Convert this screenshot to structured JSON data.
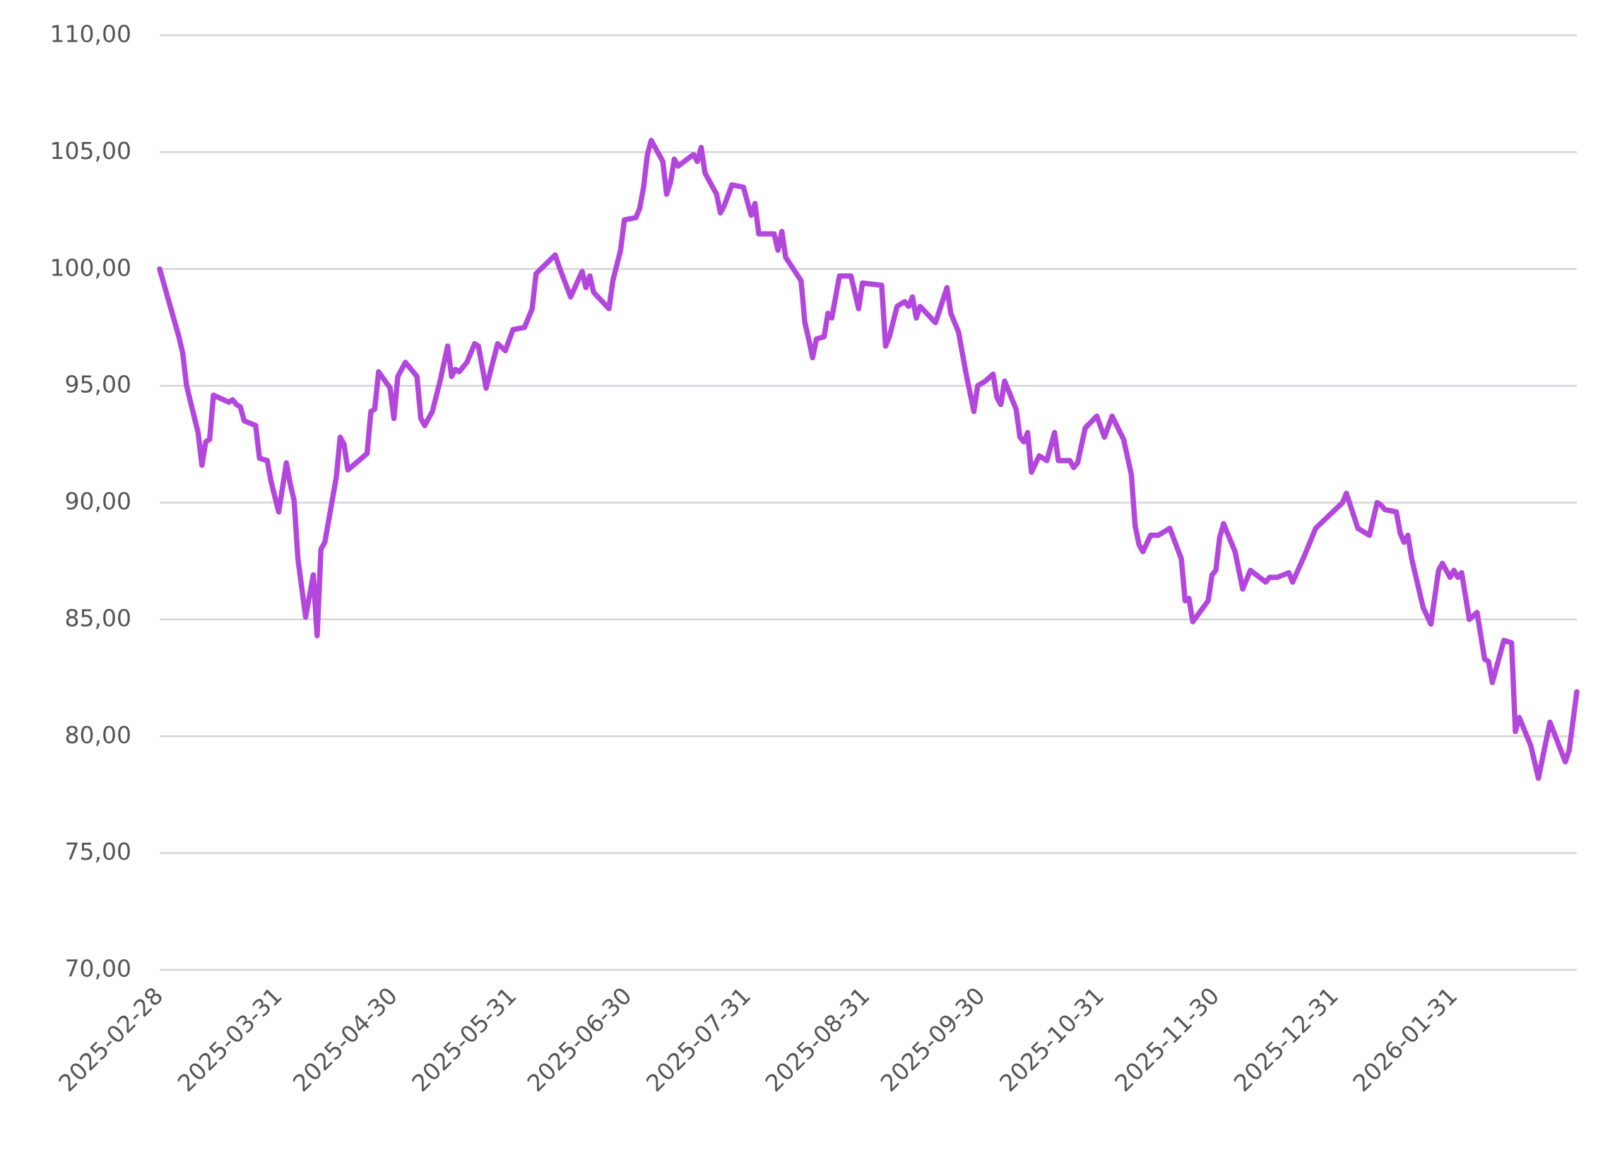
{
  "chart_data": {
    "type": "line",
    "color": "#b347dd",
    "grid": true,
    "x": [
      "2025-02-28",
      "2025-03-05",
      "2025-03-06",
      "2025-03-07",
      "2025-03-10",
      "2025-03-11",
      "2025-03-12",
      "2025-03-13",
      "2025-03-14",
      "2025-03-18",
      "2025-03-19",
      "2025-03-20",
      "2025-03-21",
      "2025-03-22",
      "2025-03-25",
      "2025-03-26",
      "2025-03-28",
      "2025-03-29",
      "2025-03-31",
      "2025-04-02",
      "2025-04-03",
      "2025-04-04",
      "2025-04-05",
      "2025-04-07",
      "2025-04-09",
      "2025-04-10",
      "2025-04-11",
      "2025-04-12",
      "2025-04-15",
      "2025-04-16",
      "2025-04-17",
      "2025-04-18",
      "2025-04-23",
      "2025-04-24",
      "2025-04-25",
      "2025-04-26",
      "2025-04-29",
      "2025-04-30",
      "2025-05-01",
      "2025-05-03",
      "2025-05-06",
      "2025-05-07",
      "2025-05-08",
      "2025-05-10",
      "2025-05-12",
      "2025-05-14",
      "2025-05-15",
      "2025-05-16",
      "2025-05-17",
      "2025-05-19",
      "2025-05-21",
      "2025-05-22",
      "2025-05-24",
      "2025-05-27",
      "2025-05-29",
      "2025-05-31",
      "2025-06-03",
      "2025-06-05",
      "2025-06-06",
      "2025-06-11",
      "2025-06-12",
      "2025-06-15",
      "2025-06-18",
      "2025-06-19",
      "2025-06-20",
      "2025-06-21",
      "2025-06-25",
      "2025-06-26",
      "2025-06-28",
      "2025-06-29",
      "2025-07-02",
      "2025-07-03",
      "2025-07-04",
      "2025-07-05",
      "2025-07-06",
      "2025-07-09",
      "2025-07-10",
      "2025-07-11",
      "2025-07-12",
      "2025-07-13",
      "2025-07-17",
      "2025-07-18",
      "2025-07-19",
      "2025-07-20",
      "2025-07-23",
      "2025-07-24",
      "2025-07-25",
      "2025-07-27",
      "2025-07-30",
      "2025-08-01",
      "2025-08-02",
      "2025-08-03",
      "2025-08-07",
      "2025-08-08",
      "2025-08-09",
      "2025-08-10",
      "2025-08-14",
      "2025-08-15",
      "2025-08-16",
      "2025-08-17",
      "2025-08-18",
      "2025-08-20",
      "2025-08-21",
      "2025-08-22",
      "2025-08-24",
      "2025-08-27",
      "2025-08-29",
      "2025-08-30",
      "2025-09-04",
      "2025-09-05",
      "2025-09-06",
      "2025-09-08",
      "2025-09-10",
      "2025-09-11",
      "2025-09-12",
      "2025-09-13",
      "2025-09-14",
      "2025-09-18",
      "2025-09-19",
      "2025-09-21",
      "2025-09-22",
      "2025-09-24",
      "2025-09-26",
      "2025-09-28",
      "2025-09-29",
      "2025-10-01",
      "2025-10-03",
      "2025-10-04",
      "2025-10-05",
      "2025-10-06",
      "2025-10-09",
      "2025-10-10",
      "2025-10-11",
      "2025-10-12",
      "2025-10-13",
      "2025-10-15",
      "2025-10-17",
      "2025-10-19",
      "2025-10-20",
      "2025-10-23",
      "2025-10-24",
      "2025-10-25",
      "2025-10-27",
      "2025-10-30",
      "2025-11-01",
      "2025-11-03",
      "2025-11-06",
      "2025-11-08",
      "2025-11-09",
      "2025-11-10",
      "2025-11-11",
      "2025-11-13",
      "2025-11-15",
      "2025-11-18",
      "2025-11-21",
      "2025-11-22",
      "2025-11-23",
      "2025-11-24",
      "2025-11-28",
      "2025-11-29",
      "2025-11-30",
      "2025-12-01",
      "2025-12-02",
      "2025-12-05",
      "2025-12-07",
      "2025-12-09",
      "2025-12-13",
      "2025-12-14",
      "2025-12-16",
      "2025-12-19",
      "2025-12-20",
      "2025-12-23",
      "2025-12-26",
      "2026-01-02",
      "2026-01-03",
      "2026-01-06",
      "2026-01-09",
      "2026-01-11",
      "2026-01-12",
      "2026-01-13",
      "2026-01-16",
      "2026-01-17",
      "2026-01-18",
      "2026-01-19",
      "2026-01-20",
      "2026-01-23",
      "2026-01-25",
      "2026-01-27",
      "2026-01-28",
      "2026-01-30",
      "2026-01-31",
      "2026-02-01",
      "2026-02-02",
      "2026-02-04",
      "2026-02-06",
      "2026-02-08",
      "2026-02-09",
      "2026-02-10",
      "2026-02-11",
      "2026-02-13",
      "2026-02-15",
      "2026-02-16",
      "2026-02-17",
      "2026-02-20",
      "2026-02-22",
      "2026-02-25",
      "2026-03-01",
      "2026-03-02",
      "2026-03-04"
    ],
    "values": [
      100.0,
      97.1,
      96.4,
      95.0,
      93.0,
      91.6,
      92.6,
      92.7,
      94.6,
      94.3,
      94.4,
      94.2,
      94.1,
      93.5,
      93.3,
      91.9,
      91.8,
      90.9,
      89.6,
      91.7,
      90.8,
      90.1,
      87.6,
      85.1,
      86.9,
      84.3,
      88.0,
      88.3,
      91.1,
      92.8,
      92.5,
      91.4,
      92.1,
      93.9,
      94.0,
      95.6,
      94.9,
      93.6,
      95.4,
      96.0,
      95.4,
      93.6,
      93.3,
      93.9,
      95.2,
      96.7,
      95.4,
      95.7,
      95.6,
      96.0,
      96.8,
      96.7,
      94.9,
      96.8,
      96.5,
      97.4,
      97.5,
      98.3,
      99.8,
      100.6,
      100.1,
      98.8,
      99.9,
      99.2,
      99.7,
      99.0,
      98.3,
      99.5,
      100.8,
      102.1,
      102.2,
      102.6,
      103.5,
      104.9,
      105.5,
      104.6,
      103.2,
      103.7,
      104.7,
      104.4,
      104.9,
      104.6,
      105.2,
      104.1,
      103.2,
      102.4,
      102.7,
      103.6,
      103.5,
      102.3,
      102.8,
      101.5,
      101.5,
      100.8,
      101.6,
      100.5,
      99.5,
      97.7,
      97.0,
      96.2,
      97.0,
      97.1,
      98.1,
      97.9,
      99.7,
      99.7,
      98.3,
      99.4,
      99.3,
      96.7,
      97.1,
      98.4,
      98.6,
      98.4,
      98.8,
      97.9,
      98.4,
      97.7,
      98.2,
      99.2,
      98.1,
      97.3,
      95.5,
      93.9,
      95.0,
      95.2,
      95.5,
      94.5,
      94.2,
      95.2,
      94.0,
      92.8,
      92.6,
      93.0,
      91.3,
      92.0,
      91.8,
      93.0,
      91.8,
      91.8,
      91.5,
      91.7,
      93.2,
      93.7,
      92.8,
      93.7,
      92.7,
      91.2,
      89.0,
      88.2,
      87.9,
      88.6,
      88.6,
      88.9,
      87.6,
      85.8,
      85.9,
      84.9,
      85.8,
      86.9,
      87.1,
      88.5,
      89.1,
      87.9,
      86.3,
      87.1,
      86.6,
      86.8,
      86.8,
      87.0,
      86.6,
      87.7,
      88.9,
      90.0,
      90.4,
      88.9,
      88.6,
      90.0,
      89.9,
      89.7,
      89.6,
      88.7,
      88.3,
      88.6,
      87.6,
      85.5,
      84.8,
      87.1,
      87.4,
      86.8,
      87.1,
      86.8,
      87.0,
      85.0,
      85.3,
      83.3,
      83.2,
      82.3,
      82.9,
      84.1,
      84.0,
      80.2,
      80.8,
      79.6,
      78.2,
      80.6,
      78.9,
      79.4,
      81.9
    ],
    "xlim": [
      "2025-02-28",
      "2026-03-04"
    ],
    "xticks": [
      "2025-02-28",
      "2025-03-31",
      "2025-04-30",
      "2025-05-31",
      "2025-06-30",
      "2025-07-31",
      "2025-08-31",
      "2025-09-30",
      "2025-10-31",
      "2025-11-30",
      "2025-12-31",
      "2026-01-31"
    ],
    "ylim": [
      70,
      110
    ],
    "yticks": [
      {
        "value": 70,
        "label": "70,00"
      },
      {
        "value": 75,
        "label": "75,00"
      },
      {
        "value": 80,
        "label": "80,00"
      },
      {
        "value": 85,
        "label": "85,00"
      },
      {
        "value": 90,
        "label": "90,00"
      },
      {
        "value": 95,
        "label": "95,00"
      },
      {
        "value": 100,
        "label": "100,00"
      },
      {
        "value": 105,
        "label": "105,00"
      },
      {
        "value": 110,
        "label": "110,00"
      }
    ]
  }
}
